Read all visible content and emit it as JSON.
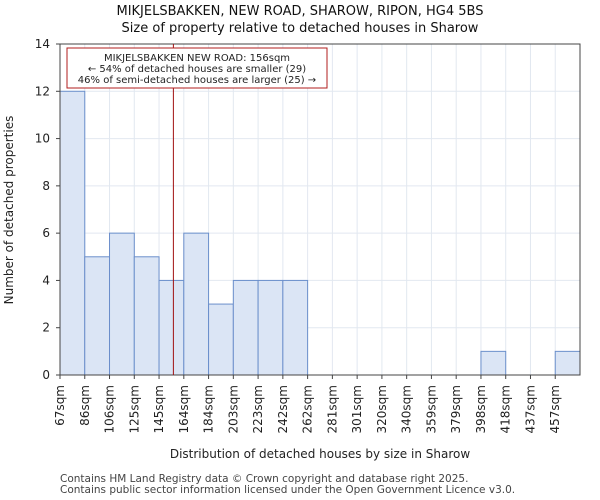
{
  "title_line1": "MIKJELSBAKKEN, NEW ROAD, SHAROW, RIPON, HG4 5BS",
  "title_line2": "Size of property relative to detached houses in Sharow",
  "footer_line1": "Contains HM Land Registry data © Crown copyright and database right 2025.",
  "footer_line2": "Contains public sector information licensed under the Open Government Licence v3.0.",
  "colors": {
    "bar_fill": "#dbe5f5",
    "bar_edge": "#6b8fcb",
    "marker": "#a01010",
    "annotation_border": "#b01e1e",
    "grid": "#e2e8f0"
  },
  "chart_data": {
    "type": "bar",
    "title": "Size of property relative to detached houses in Sharow",
    "xlabel": "Distribution of detached houses by size in Sharow",
    "ylabel": "Number of detached properties",
    "categories": [
      "67sqm",
      "86sqm",
      "106sqm",
      "125sqm",
      "145sqm",
      "164sqm",
      "184sqm",
      "203sqm",
      "223sqm",
      "242sqm",
      "262sqm",
      "281sqm",
      "301sqm",
      "320sqm",
      "340sqm",
      "359sqm",
      "379sqm",
      "398sqm",
      "418sqm",
      "437sqm",
      "457sqm"
    ],
    "values": [
      12,
      5,
      6,
      5,
      4,
      6,
      3,
      4,
      4,
      4,
      0,
      0,
      0,
      0,
      0,
      0,
      0,
      1,
      0,
      0,
      1
    ],
    "ylim": [
      0,
      14
    ],
    "yticks": [
      0,
      2,
      4,
      6,
      8,
      10,
      12,
      14
    ],
    "grid": true,
    "marker_value_sqm": 156,
    "annotation": {
      "line1": "MIKJELSBAKKEN NEW ROAD: 156sqm",
      "line2": "← 54% of detached houses are smaller (29)",
      "line3": "46% of semi-detached houses are larger (25) →"
    }
  }
}
